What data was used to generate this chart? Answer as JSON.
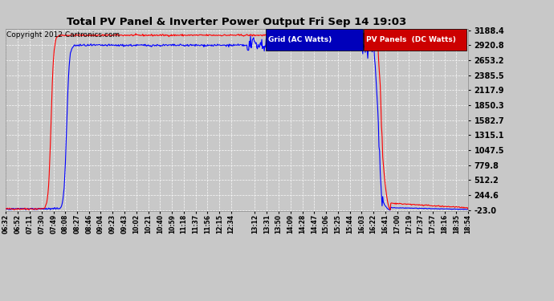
{
  "title": "Total PV Panel & Inverter Power Output Fri Sep 14 19:03",
  "copyright": "Copyright 2012 Cartronics.com",
  "legend_blue": "Grid (AC Watts)",
  "legend_red": "PV Panels  (DC Watts)",
  "blue_color": "#0000ff",
  "red_color": "#ff0000",
  "bg_color": "#c8c8c8",
  "plot_bg_color": "#c8c8c8",
  "grid_color": "#ffffff",
  "yticks": [
    -23.0,
    244.6,
    512.2,
    779.8,
    1047.5,
    1315.1,
    1582.7,
    1850.3,
    2117.9,
    2385.5,
    2653.2,
    2920.8,
    3188.4
  ],
  "ymin": -23.0,
  "ymax": 3188.4,
  "xtick_labels": [
    "06:32",
    "06:52",
    "07:11",
    "07:30",
    "07:49",
    "08:08",
    "08:27",
    "08:46",
    "09:04",
    "09:23",
    "09:43",
    "10:02",
    "10:21",
    "10:40",
    "10:59",
    "11:18",
    "11:37",
    "11:56",
    "12:15",
    "12:34",
    "13:12",
    "13:31",
    "13:50",
    "14:09",
    "14:28",
    "14:47",
    "15:06",
    "15:25",
    "15:44",
    "16:03",
    "16:22",
    "16:41",
    "17:00",
    "17:19",
    "17:37",
    "17:57",
    "18:16",
    "18:35",
    "18:54"
  ]
}
